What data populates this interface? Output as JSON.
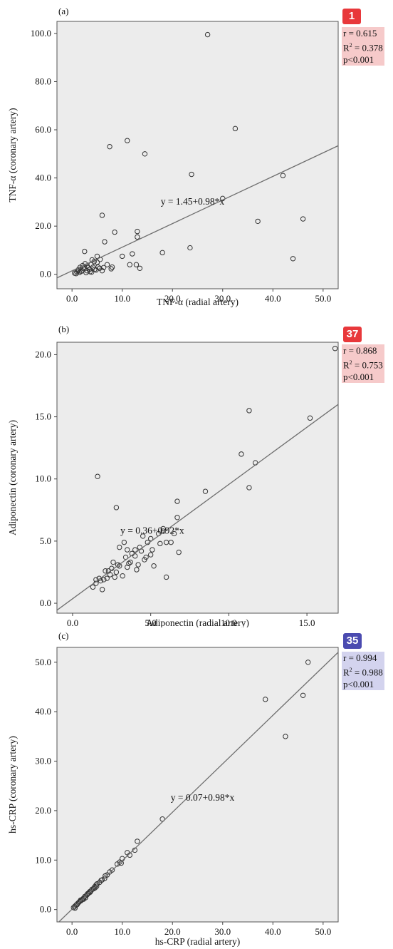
{
  "colors": {
    "plot_bg": "#ececec",
    "marker": "#333333",
    "fit_line": "#6e6e6e",
    "badge_red": "#e8383b",
    "badge_blue": "#4b4bb0",
    "stat_red_bg": "#f6caca",
    "stat_blue_bg": "#d3d3ee"
  },
  "chart_data": [
    {
      "type": "scatter",
      "panel_label": "(a)",
      "xlabel": "TNF-α (radial artery)",
      "ylabel": "TNF-α (coronary artery)",
      "xlim": [
        -3,
        53
      ],
      "ylim": [
        -6,
        105
      ],
      "xticks": [
        0,
        10,
        20,
        30,
        40,
        50
      ],
      "yticks": [
        0,
        20,
        40,
        60,
        80,
        100
      ],
      "tick_format": "0.0",
      "fit": {
        "intercept": 1.45,
        "slope": 0.98,
        "label": "y = 1.45+0.98*x"
      },
      "stats": {
        "r": "r = 0.615",
        "r2_prefix": "R",
        "r2_suffix": " = 0.378",
        "p": "p<0.001"
      },
      "badge": {
        "text": "1",
        "color": "badge_red"
      },
      "points": [
        [
          0.5,
          0.5
        ],
        [
          1,
          1
        ],
        [
          1.3,
          2
        ],
        [
          1.5,
          0.8
        ],
        [
          2,
          1.5
        ],
        [
          2.2,
          2.5
        ],
        [
          2.5,
          3
        ],
        [
          3,
          3.5
        ],
        [
          3,
          1.5
        ],
        [
          3.5,
          2
        ],
        [
          3.8,
          4
        ],
        [
          4,
          6
        ],
        [
          4.2,
          3
        ],
        [
          4.5,
          2
        ],
        [
          5,
          5
        ],
        [
          5,
          7.5
        ],
        [
          5.2,
          3
        ],
        [
          5.5,
          2.5
        ],
        [
          6,
          1.5
        ],
        [
          6,
          24.5
        ],
        [
          6.5,
          13.5
        ],
        [
          7,
          4
        ],
        [
          7.5,
          53
        ],
        [
          8,
          3
        ],
        [
          8.5,
          17.5
        ],
        [
          10,
          7.5
        ],
        [
          11,
          55.5
        ],
        [
          11.5,
          4
        ],
        [
          12,
          8.5
        ],
        [
          12.8,
          4
        ],
        [
          13,
          15.5
        ],
        [
          13,
          17.8
        ],
        [
          13.5,
          2.5
        ],
        [
          14.5,
          50
        ],
        [
          18,
          9
        ],
        [
          23.5,
          11
        ],
        [
          23.8,
          41.5
        ],
        [
          27,
          99.5
        ],
        [
          30,
          31.5
        ],
        [
          32.5,
          60.5
        ],
        [
          37,
          22
        ],
        [
          42,
          41
        ],
        [
          44,
          6.5
        ],
        [
          46,
          23
        ],
        [
          2.5,
          9.5
        ],
        [
          1.8,
          1.2
        ],
        [
          2.8,
          0.7
        ],
        [
          3.2,
          2.8
        ],
        [
          4.8,
          1.8
        ],
        [
          5.6,
          6.2
        ],
        [
          1.2,
          1.6
        ],
        [
          2.1,
          3.6
        ],
        [
          0.8,
          0.3
        ],
        [
          6.3,
          2.8
        ],
        [
          3.6,
          1.1
        ],
        [
          4.4,
          5.3
        ],
        [
          7.8,
          2.3
        ],
        [
          1.6,
          2.9
        ],
        [
          2.6,
          4.4
        ],
        [
          3.9,
          0.9
        ]
      ]
    },
    {
      "type": "scatter",
      "panel_label": "(b)",
      "xlabel": "Adiponectin (radial artery)",
      "ylabel": "Adiponectin (coronary artery)",
      "xlim": [
        -1,
        17
      ],
      "ylim": [
        -0.8,
        21
      ],
      "xticks": [
        0,
        5,
        10,
        15
      ],
      "yticks": [
        0,
        5,
        10,
        15,
        20
      ],
      "tick_format": "0.0",
      "fit": {
        "intercept": 0.36,
        "slope": 0.92,
        "label": "y = 0.36+0.92*x"
      },
      "stats": {
        "r": "r = 0.868",
        "r2_prefix": "R",
        "r2_suffix": " = 0.753",
        "p": "p<0.001"
      },
      "badge": {
        "text": "37",
        "color": "badge_red"
      },
      "points": [
        [
          1.3,
          1.3
        ],
        [
          1.5,
          1.6
        ],
        [
          1.7,
          2
        ],
        [
          1.8,
          1.8
        ],
        [
          1.9,
          1.1
        ],
        [
          2,
          1.9
        ],
        [
          2.2,
          2
        ],
        [
          2.3,
          2.6
        ],
        [
          2.5,
          2.8
        ],
        [
          2.6,
          3.3
        ],
        [
          2.8,
          2.5
        ],
        [
          3,
          3
        ],
        [
          3,
          4.5
        ],
        [
          3.2,
          2.2
        ],
        [
          3.3,
          4.9
        ],
        [
          3.5,
          4.3
        ],
        [
          3.5,
          2.9
        ],
        [
          3.7,
          3.3
        ],
        [
          4,
          3.8
        ],
        [
          4,
          4.3
        ],
        [
          4.2,
          3.1
        ],
        [
          4.3,
          4.5
        ],
        [
          4.5,
          5.4
        ],
        [
          4.7,
          3.7
        ],
        [
          4.8,
          4.9
        ],
        [
          5,
          3.9
        ],
        [
          5,
          5.2
        ],
        [
          5.2,
          3
        ],
        [
          5.5,
          5.6
        ],
        [
          5.6,
          4.8
        ],
        [
          5.8,
          6
        ],
        [
          5.8,
          5.8
        ],
        [
          6,
          4.9
        ],
        [
          6,
          2.1
        ],
        [
          6.3,
          4.9
        ],
        [
          6.5,
          5.6
        ],
        [
          6.7,
          6.9
        ],
        [
          6.7,
          8.2
        ],
        [
          6.8,
          4.1
        ],
        [
          8.5,
          9
        ],
        [
          10.8,
          12
        ],
        [
          11.3,
          15.5
        ],
        [
          11.3,
          9.3
        ],
        [
          11.7,
          11.3
        ],
        [
          15.2,
          14.9
        ],
        [
          1.6,
          10.2
        ],
        [
          2.8,
          7.7
        ],
        [
          16.8,
          20.5
        ],
        [
          2.4,
          2.3
        ],
        [
          3.8,
          4
        ],
        [
          4.4,
          4.2
        ],
        [
          2.1,
          2.6
        ],
        [
          2.9,
          3.1
        ],
        [
          3.4,
          3.7
        ],
        [
          5.1,
          4.3
        ],
        [
          4.6,
          3.5
        ],
        [
          1.5,
          1.9
        ],
        [
          2.7,
          2.1
        ],
        [
          3.6,
          3.2
        ],
        [
          4.1,
          2.7
        ]
      ]
    },
    {
      "type": "scatter",
      "panel_label": "(c)",
      "xlabel": "hs-CRP (radial artery)",
      "ylabel": "hs-CRP (coronary artery)",
      "xlim": [
        -3,
        53
      ],
      "ylim": [
        -2.5,
        53
      ],
      "xticks": [
        0,
        10,
        20,
        30,
        40,
        50
      ],
      "yticks": [
        0,
        10,
        20,
        30,
        40,
        50
      ],
      "tick_format": "0.0",
      "fit": {
        "intercept": 0.07,
        "slope": 0.98,
        "label": "y = 0.07+0.98*x"
      },
      "stats": {
        "r": "r = 0.994",
        "r2_prefix": "R",
        "r2_suffix": " = 0.988",
        "p": "p<0.001"
      },
      "badge": {
        "text": "35",
        "color": "badge_blue"
      },
      "points": [
        [
          0.3,
          0.4
        ],
        [
          0.5,
          0.6
        ],
        [
          0.8,
          0.9
        ],
        [
          1,
          1
        ],
        [
          1.3,
          1.4
        ],
        [
          1.5,
          1.6
        ],
        [
          1.8,
          1.8
        ],
        [
          2,
          2
        ],
        [
          2.2,
          2.2
        ],
        [
          2.5,
          2.6
        ],
        [
          2.8,
          2.8
        ],
        [
          3,
          3
        ],
        [
          3.3,
          3.3
        ],
        [
          3.5,
          3.6
        ],
        [
          3.8,
          3.8
        ],
        [
          4,
          4.1
        ],
        [
          4.3,
          4.2
        ],
        [
          4.5,
          4.6
        ],
        [
          4.8,
          5
        ],
        [
          5,
          5.2
        ],
        [
          5.5,
          5.5
        ],
        [
          6,
          6
        ],
        [
          6.5,
          6.3
        ],
        [
          7,
          7
        ],
        [
          7.5,
          7.6
        ],
        [
          8,
          8
        ],
        [
          9,
          9.2
        ],
        [
          9.5,
          9.6
        ],
        [
          10,
          10.3
        ],
        [
          11,
          11.5
        ],
        [
          11.5,
          11
        ],
        [
          12.5,
          12
        ],
        [
          13,
          13.8
        ],
        [
          18,
          18.3
        ],
        [
          38.5,
          42.5
        ],
        [
          42.5,
          35
        ],
        [
          46,
          43.3
        ],
        [
          47,
          50
        ],
        [
          0.6,
          0.3
        ],
        [
          1.1,
          1.2
        ],
        [
          2.7,
          2.4
        ],
        [
          3.6,
          3.5
        ],
        [
          4.6,
          4.4
        ],
        [
          5.8,
          5.9
        ],
        [
          6.6,
          6.8
        ],
        [
          9.8,
          9.4
        ],
        [
          2.3,
          2.1
        ],
        [
          1.7,
          1.9
        ],
        [
          3.1,
          3.2
        ],
        [
          4.9,
          4.7
        ]
      ]
    }
  ]
}
